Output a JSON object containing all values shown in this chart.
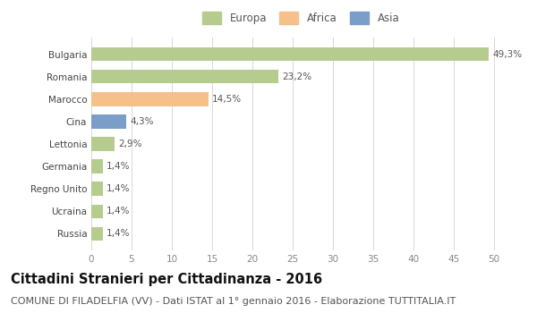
{
  "categories": [
    "Bulgaria",
    "Romania",
    "Marocco",
    "Cina",
    "Lettonia",
    "Germania",
    "Regno Unito",
    "Ucraina",
    "Russia"
  ],
  "values": [
    49.3,
    23.2,
    14.5,
    4.3,
    2.9,
    1.4,
    1.4,
    1.4,
    1.4
  ],
  "labels": [
    "49,3%",
    "23,2%",
    "14,5%",
    "4,3%",
    "2,9%",
    "1,4%",
    "1,4%",
    "1,4%",
    "1,4%"
  ],
  "bar_colors": [
    "#b5cc8e",
    "#b5cc8e",
    "#f5c08a",
    "#7b9ec9",
    "#b5cc8e",
    "#b5cc8e",
    "#b5cc8e",
    "#b5cc8e",
    "#b5cc8e"
  ],
  "legend_labels": [
    "Europa",
    "Africa",
    "Asia"
  ],
  "legend_colors": [
    "#b5cc8e",
    "#f5c08a",
    "#7b9ec9"
  ],
  "title": "Cittadini Stranieri per Cittadinanza - 2016",
  "subtitle": "COMUNE DI FILADELFIA (VV) - Dati ISTAT al 1° gennaio 2016 - Elaborazione TUTTITALIA.IT",
  "xlim": [
    0,
    52
  ],
  "xticks": [
    0,
    5,
    10,
    15,
    20,
    25,
    30,
    35,
    40,
    45,
    50
  ],
  "background_color": "#ffffff",
  "grid_color": "#d8d8d8",
  "bar_height": 0.62,
  "title_fontsize": 10.5,
  "subtitle_fontsize": 8,
  "label_fontsize": 7.5,
  "tick_fontsize": 7.5,
  "legend_fontsize": 8.5
}
